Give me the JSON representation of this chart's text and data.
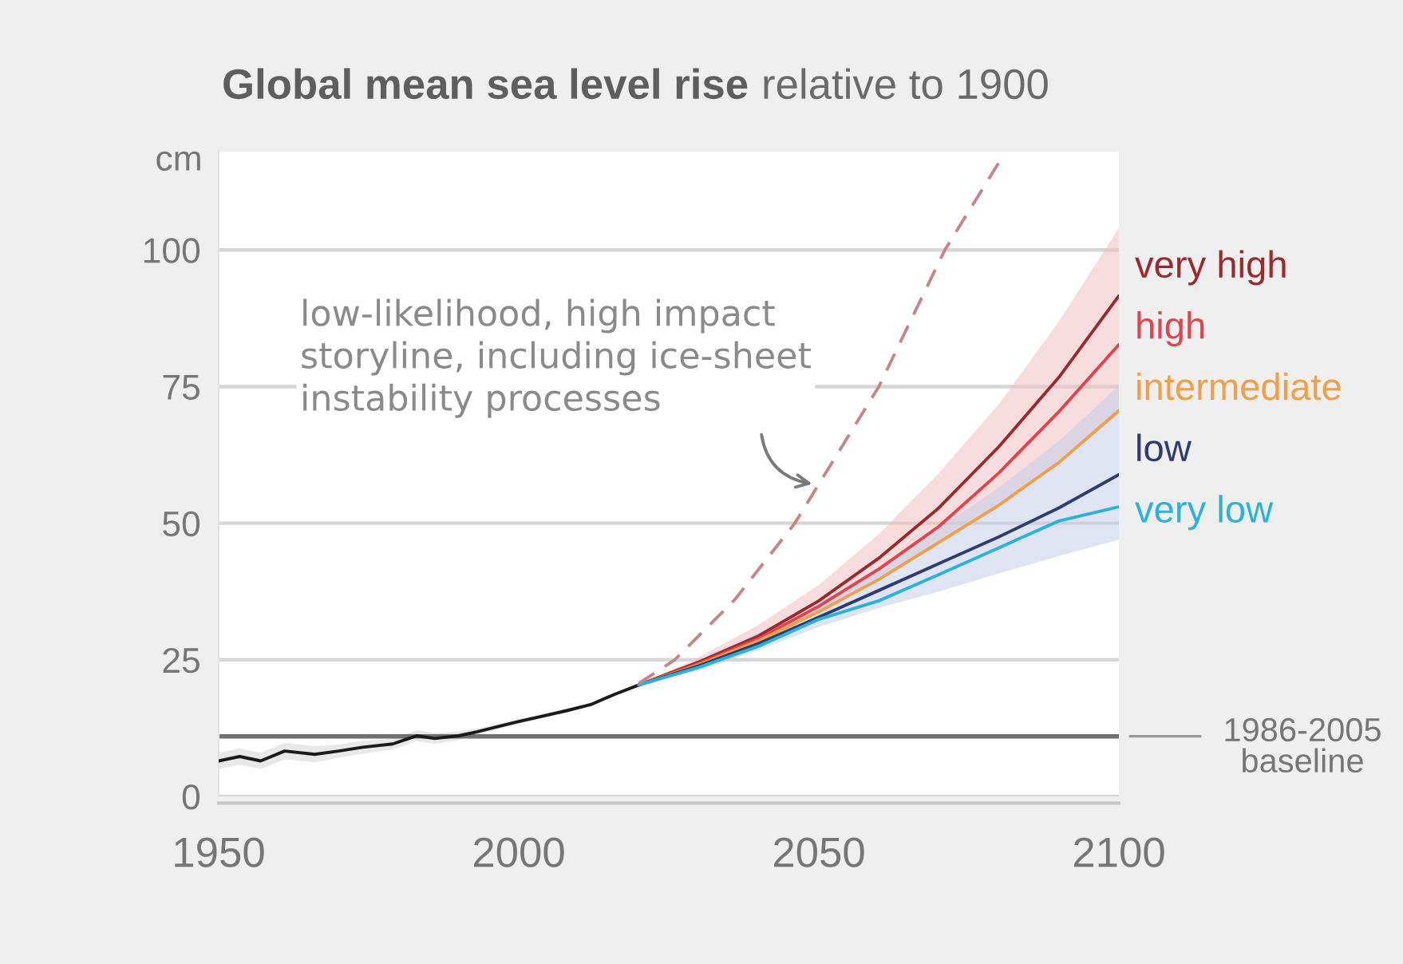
{
  "chart_data": {
    "type": "line",
    "title": "Global mean sea level rise",
    "subtitle": "relative to 1900",
    "ylabel": "cm",
    "xlim": [
      1950,
      2100
    ],
    "xticks": [
      1950,
      2000,
      2050,
      2100
    ],
    "ylim": [
      0,
      118
    ],
    "yticks": [
      0,
      25,
      50,
      75,
      100
    ],
    "grid": "y",
    "series": [
      {
        "color": "#1a1a1a",
        "x": [
          1950,
          1953.5,
          1957,
          1961,
          1966,
          1970,
          1974,
          1979,
          1983,
          1986,
          1990,
          1993,
          1997,
          2000,
          2004,
          2008,
          2012,
          2016,
          2020
        ],
        "values": [
          6.5,
          7.3,
          6.5,
          8.3,
          7.7,
          8.3,
          9.0,
          9.6,
          11.1,
          10.6,
          11.1,
          11.8,
          12.9,
          13.7,
          14.7,
          15.7,
          16.8,
          18.7,
          20.4
        ],
        "lower": [
          5.0,
          5.8,
          5.0,
          6.8,
          6.2,
          7.1,
          7.8,
          8.6,
          10.1,
          9.6,
          10.3,
          11.2,
          12.4,
          13.2,
          14.3,
          15.3,
          16.5,
          18.4,
          20.1
        ],
        "upper": [
          8.0,
          8.8,
          8.0,
          9.8,
          9.2,
          9.5,
          10.2,
          10.6,
          12.1,
          11.6,
          11.9,
          12.4,
          13.4,
          14.2,
          15.1,
          16.1,
          17.1,
          19.0,
          20.7
        ]
      },
      {
        "name": "very high",
        "color": "#9b2a2f",
        "x": [
          2020,
          2030,
          2040,
          2050,
          2060,
          2070,
          2080,
          2090,
          2100
        ],
        "values": [
          20.4,
          24.6,
          29.4,
          35.8,
          43.6,
          52.8,
          64.0,
          76.7,
          91.6
        ],
        "lower": [
          20.4,
          23.8,
          28.0,
          33.5,
          39.5,
          46.0,
          53.0,
          61.0,
          70.0
        ],
        "upper": [
          20.4,
          25.5,
          31.4,
          38.7,
          48.0,
          59.2,
          71.8,
          86.9,
          104.0
        ]
      },
      {
        "name": "high",
        "color": "#e2434c",
        "x": [
          2020,
          2030,
          2040,
          2050,
          2060,
          2070,
          2080,
          2090,
          2100
        ],
        "values": [
          20.4,
          24.3,
          28.9,
          34.8,
          41.6,
          49.4,
          59.2,
          70.4,
          82.7
        ]
      },
      {
        "name": "intermediate",
        "color": "#f0a04b",
        "x": [
          2020,
          2030,
          2040,
          2050,
          2060,
          2070,
          2080,
          2090,
          2100
        ],
        "values": [
          20.4,
          24.1,
          28.5,
          33.8,
          39.7,
          46.5,
          53.3,
          61.1,
          70.6
        ]
      },
      {
        "name": "low",
        "color": "#2e3d70",
        "x": [
          2020,
          2030,
          2040,
          2050,
          2060,
          2070,
          2080,
          2090,
          2100
        ],
        "values": [
          20.4,
          23.9,
          28.0,
          32.8,
          37.7,
          42.6,
          47.5,
          52.8,
          58.9
        ],
        "lower": [
          20.4,
          23.0,
          26.8,
          31.0,
          34.5,
          37.5,
          40.8,
          44.0,
          47.0
        ],
        "upper": [
          20.4,
          24.8,
          30.0,
          35.5,
          42.0,
          49.0,
          56.5,
          65.0,
          75.2
        ]
      },
      {
        "name": "very low",
        "color": "#2bb2da",
        "x": [
          2020,
          2030,
          2040,
          2050,
          2060,
          2070,
          2080,
          2090,
          2100
        ],
        "values": [
          20.4,
          23.6,
          27.5,
          32.4,
          35.8,
          40.6,
          45.5,
          50.4,
          53.0
        ]
      },
      {
        "color": "#c4868b",
        "line_style": "dashed",
        "x": [
          2020,
          2026,
          2036,
          2046,
          2060,
          2071,
          2080
        ],
        "values": [
          20.7,
          25,
          36,
          50,
          75,
          100,
          116
        ]
      }
    ],
    "ref_lines": [
      {
        "axis": "y",
        "value": 11,
        "label": "1986-2005\nbaseline",
        "color": "#707070"
      }
    ],
    "annotations": [
      {
        "text": "low-likelihood, high impact\nstoryline, including ice-sheet\ninstability processes",
        "x": 2050,
        "y": 57
      }
    ]
  }
}
